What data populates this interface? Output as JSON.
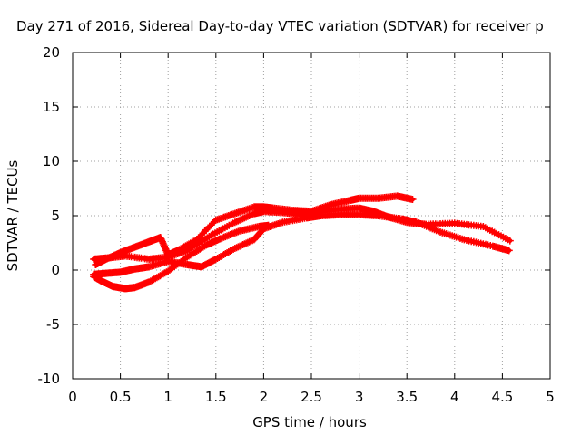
{
  "chart_data": {
    "type": "scatter",
    "title": "Day 271 of 2016, Sidereal Day-to-day VTEC variation (SDTVAR) for receiver p",
    "xlabel": "GPS time / hours",
    "ylabel": "SDTVAR / TECUs",
    "xlim": [
      0,
      5
    ],
    "ylim": [
      -10,
      20
    ],
    "x_ticks": [
      "0",
      "0.5",
      "1",
      "1.5",
      "2",
      "2.5",
      "3",
      "3.5",
      "4",
      "4.5",
      "5"
    ],
    "y_ticks": [
      "20",
      "15",
      "10",
      "5",
      "0",
      "-5",
      "-10"
    ],
    "grid": true,
    "legend": "none",
    "series": [
      {
        "color": "#ff0000",
        "marker": "plus",
        "x": [
          0.24,
          0.35,
          0.5,
          0.65,
          0.8,
          0.92,
          1.0,
          1.1,
          1.3,
          1.5,
          1.7,
          1.9,
          2.0,
          2.1,
          2.3,
          2.5,
          2.7,
          2.9,
          3.0,
          3.2,
          3.4,
          3.56
        ],
        "y": [
          0.5,
          1.0,
          1.6,
          2.1,
          2.6,
          3.0,
          1.4,
          1.8,
          2.8,
          4.6,
          5.2,
          5.8,
          5.8,
          5.7,
          5.5,
          5.4,
          6.0,
          6.4,
          6.6,
          6.6,
          6.8,
          6.5
        ]
      },
      {
        "color": "#ff0000",
        "marker": "plus",
        "x": [
          0.22,
          0.35,
          0.55,
          0.8,
          1.0,
          1.2,
          1.45,
          1.7,
          1.9,
          2.0,
          2.2,
          2.4,
          2.6,
          2.8,
          3.0,
          3.15,
          3.3,
          3.5,
          3.7,
          4.0,
          4.3,
          4.58
        ],
        "y": [
          1.0,
          1.1,
          1.3,
          1.0,
          1.2,
          1.8,
          3.2,
          4.4,
          5.2,
          5.4,
          5.3,
          5.1,
          5.4,
          5.6,
          5.7,
          5.4,
          4.9,
          4.4,
          4.2,
          4.3,
          4.0,
          2.7
        ]
      },
      {
        "color": "#ff0000",
        "marker": "plus",
        "x": [
          0.22,
          0.35,
          0.5,
          0.65,
          0.8,
          1.0,
          1.2,
          1.35,
          1.5,
          1.7,
          1.9,
          2.0,
          2.2,
          2.45,
          2.6,
          2.8,
          3.0,
          3.2,
          3.45,
          3.6,
          3.85,
          4.1,
          4.4,
          4.57
        ],
        "y": [
          -0.4,
          -0.3,
          -0.2,
          0.1,
          0.3,
          0.8,
          0.5,
          0.3,
          1.0,
          2.0,
          2.8,
          3.8,
          4.4,
          4.8,
          5.0,
          5.1,
          5.1,
          5.0,
          4.7,
          4.4,
          3.5,
          2.8,
          2.2,
          1.8
        ]
      },
      {
        "color": "#ff0000",
        "marker": "plus",
        "x": [
          0.22,
          0.3,
          0.42,
          0.55,
          0.65,
          0.8,
          1.0,
          1.2,
          1.4,
          1.55,
          1.75,
          1.95,
          2.05
        ],
        "y": [
          -0.6,
          -1.0,
          -1.5,
          -1.7,
          -1.6,
          -1.1,
          -0.1,
          1.2,
          2.3,
          2.9,
          3.6,
          4.0,
          4.1
        ]
      }
    ]
  }
}
